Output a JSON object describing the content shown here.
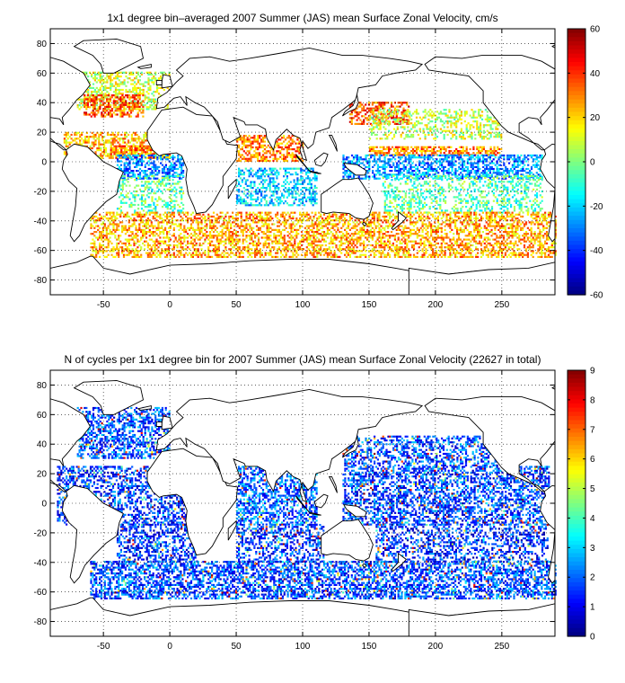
{
  "chart_data": [
    {
      "type": "heatmap",
      "title": "1x1 degree bin–averaged 2007 Summer (JAS) mean Surface Zonal Velocity, cm/s",
      "xlim": [
        -90,
        290
      ],
      "ylim": [
        -90,
        90
      ],
      "x_ticks": [
        -50,
        0,
        50,
        100,
        150,
        200,
        250
      ],
      "y_ticks": [
        80,
        60,
        40,
        20,
        0,
        -20,
        -40,
        -60,
        -80
      ],
      "grid": "dotted",
      "colorbar": {
        "min": -60,
        "max": 60,
        "ticks": [
          60,
          40,
          20,
          0,
          -20,
          -40,
          -60
        ],
        "colormap": "jet"
      },
      "bands": [
        {
          "lat": [
            60,
            35
          ],
          "lon": [
            -70,
            0
          ],
          "value": 10,
          "density": 0.45
        },
        {
          "lat": [
            45,
            30
          ],
          "lon": [
            -65,
            -20
          ],
          "value": 35,
          "density": 0.55
        },
        {
          "lat": [
            40,
            25
          ],
          "lon": [
            135,
            180
          ],
          "value": 35,
          "density": 0.55
        },
        {
          "lat": [
            35,
            15
          ],
          "lon": [
            150,
            250
          ],
          "value": 8,
          "density": 0.35
        },
        {
          "lat": [
            20,
            2
          ],
          "lon": [
            -80,
            0
          ],
          "value": 22,
          "density": 0.5
        },
        {
          "lat": [
            10,
            2
          ],
          "lon": [
            -45,
            0
          ],
          "value": 30,
          "density": 0.6
        },
        {
          "lat": [
            10,
            4
          ],
          "lon": [
            150,
            250
          ],
          "value": 30,
          "density": 0.6
        },
        {
          "lat": [
            4,
            -12
          ],
          "lon": [
            -40,
            10
          ],
          "value": -30,
          "density": 0.55
        },
        {
          "lat": [
            4,
            -12
          ],
          "lon": [
            130,
            280
          ],
          "value": -28,
          "density": 0.55
        },
        {
          "lat": [
            18,
            0
          ],
          "lon": [
            50,
            100
          ],
          "value": 30,
          "density": 0.55
        },
        {
          "lat": [
            -5,
            -30
          ],
          "lon": [
            50,
            110
          ],
          "value": -20,
          "density": 0.45
        },
        {
          "lat": [
            -10,
            -35
          ],
          "lon": [
            -40,
            10
          ],
          "value": -5,
          "density": 0.35
        },
        {
          "lat": [
            -10,
            -35
          ],
          "lon": [
            160,
            280
          ],
          "value": -5,
          "density": 0.35
        },
        {
          "lat": [
            -35,
            -65
          ],
          "lon": [
            -60,
            290
          ],
          "value": 25,
          "density": 0.5
        }
      ]
    },
    {
      "type": "heatmap",
      "title": "N of cycles per 1x1 degree bin for 2007 Summer (JAS) mean Surface Zonal Velocity (22627 in total)",
      "total_cycles": 22627,
      "xlim": [
        -90,
        290
      ],
      "ylim": [
        -90,
        90
      ],
      "x_ticks": [
        -50,
        0,
        50,
        100,
        150,
        200,
        250
      ],
      "y_ticks": [
        80,
        60,
        40,
        20,
        0,
        -20,
        -40,
        -60,
        -80
      ],
      "grid": "dotted",
      "colorbar": {
        "min": 0,
        "max": 9,
        "ticks": [
          9,
          8,
          7,
          6,
          5,
          4,
          3,
          2,
          1,
          0
        ],
        "colormap": "jet"
      },
      "bands": [
        {
          "lat": [
            65,
            30
          ],
          "lon": [
            -70,
            0
          ],
          "value": 1.8,
          "density": 0.5
        },
        {
          "lat": [
            45,
            25
          ],
          "lon": [
            130,
            250
          ],
          "value": 1.8,
          "density": 0.45
        },
        {
          "lat": [
            25,
            -15
          ],
          "lon": [
            -85,
            20
          ],
          "value": 1.6,
          "density": 0.45
        },
        {
          "lat": [
            25,
            -15
          ],
          "lon": [
            50,
            110
          ],
          "value": 2.0,
          "density": 0.5
        },
        {
          "lat": [
            25,
            -15
          ],
          "lon": [
            130,
            285
          ],
          "value": 1.7,
          "density": 0.5
        },
        {
          "lat": [
            -15,
            -40
          ],
          "lon": [
            -40,
            20
          ],
          "value": 1.5,
          "density": 0.4
        },
        {
          "lat": [
            -15,
            -40
          ],
          "lon": [
            50,
            115
          ],
          "value": 1.6,
          "density": 0.45
        },
        {
          "lat": [
            -15,
            -40
          ],
          "lon": [
            155,
            285
          ],
          "value": 1.5,
          "density": 0.4
        },
        {
          "lat": [
            -40,
            -65
          ],
          "lon": [
            -60,
            290
          ],
          "value": 1.8,
          "density": 0.55
        }
      ]
    }
  ]
}
